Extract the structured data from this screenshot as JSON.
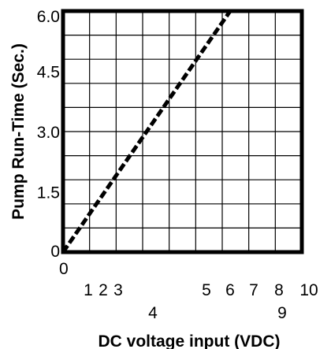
{
  "chart_data": {
    "type": "line",
    "title": "",
    "xlabel": "DC voltage input (VDC)",
    "ylabel": "Pump Run-Time (Sec.)",
    "xlim": [
      0,
      10
    ],
    "ylim": [
      0,
      6.0
    ],
    "grid": true,
    "legend": "none",
    "y_ticks": [
      {
        "value": 0,
        "label": "0"
      },
      {
        "value": 1.5,
        "label": "1.5"
      },
      {
        "value": 3.0,
        "label": "3.0"
      },
      {
        "value": 4.5,
        "label": "4.5"
      },
      {
        "value": 6.0,
        "label": "6.0"
      }
    ],
    "x_ticks": [
      {
        "value": 0,
        "label": "0"
      },
      {
        "value": 1,
        "label": "1"
      },
      {
        "value": 2,
        "label": "2"
      },
      {
        "value": 3,
        "label": "3"
      },
      {
        "value": 4,
        "label": "4"
      },
      {
        "value": 5,
        "label": "5"
      },
      {
        "value": 6,
        "label": "6"
      },
      {
        "value": 7,
        "label": "7"
      },
      {
        "value": 8,
        "label": "8"
      },
      {
        "value": 9,
        "label": "9"
      },
      {
        "value": 10,
        "label": "10"
      }
    ],
    "series": [
      {
        "style": "dashed",
        "color": "#000000",
        "points": [
          {
            "x": 0,
            "y": 0
          },
          {
            "x": 7,
            "y": 6.0
          }
        ]
      }
    ]
  }
}
